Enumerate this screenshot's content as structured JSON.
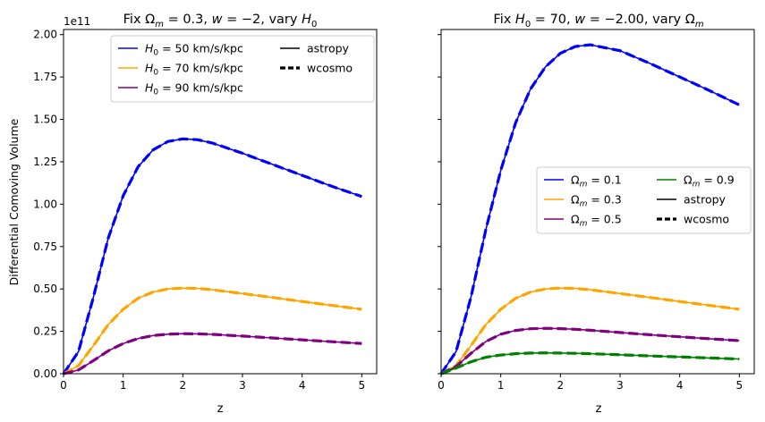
{
  "chart_data": [
    {
      "type": "line",
      "title": "Fix Ωm = 0.3, w = −2, vary H0",
      "title_parts": {
        "p1": "Fix Ω",
        "s1": "m",
        "p2": " = 0.3, ",
        "w": "w",
        "p3": " = −2, vary ",
        "h": "H",
        "s2": "0"
      },
      "xlabel": "z",
      "ylabel": "Differential Comoving Volume",
      "offset_label": "1e11",
      "xlim": [
        0,
        5.25
      ],
      "ylim": [
        0,
        2.03
      ],
      "y_scale": 100000000000.0,
      "xticks": [
        "0",
        "1",
        "2",
        "3",
        "4",
        "5"
      ],
      "yticks": [
        "0.00",
        "0.25",
        "0.50",
        "0.75",
        "1.00",
        "1.25",
        "1.50",
        "1.75",
        "2.00"
      ],
      "grid": false,
      "legend": {
        "placement": "top-right",
        "entries": [
          {
            "label": "H0 = 50 km/s/kpc",
            "math": "H",
            "sub": "0",
            "rest": " = 50 km/s/kpc",
            "color": "#0000ff",
            "style": "solid"
          },
          {
            "label": "H0 = 70 km/s/kpc",
            "math": "H",
            "sub": "0",
            "rest": " = 70 km/s/kpc",
            "color": "#ffa500",
            "style": "solid"
          },
          {
            "label": "H0 = 90 km/s/kpc",
            "math": "H",
            "sub": "0",
            "rest": " = 90 km/s/kpc",
            "color": "#800080",
            "style": "solid"
          },
          {
            "label": "astropy",
            "color": "#000000",
            "style": "solid"
          },
          {
            "label": "wcosmo",
            "color": "#000000",
            "style": "dashed"
          }
        ]
      },
      "x": [
        0,
        0.25,
        0.5,
        0.75,
        1,
        1.25,
        1.5,
        1.75,
        2,
        2.25,
        2.5,
        3,
        3.5,
        4,
        4.5,
        5
      ],
      "series": [
        {
          "name": "H0 = 50 km/s/kpc",
          "color": "#0000ff",
          "values": [
            0,
            0.13,
            0.45,
            0.8,
            1.05,
            1.22,
            1.32,
            1.37,
            1.385,
            1.38,
            1.36,
            1.3,
            1.235,
            1.17,
            1.105,
            1.045
          ]
        },
        {
          "name": "H0 = 70 km/s/kpc",
          "color": "#ffa500",
          "values": [
            0,
            0.048,
            0.165,
            0.29,
            0.38,
            0.445,
            0.482,
            0.5,
            0.505,
            0.503,
            0.495,
            0.473,
            0.45,
            0.426,
            0.403,
            0.38
          ]
        },
        {
          "name": "H0 = 90 km/s/kpc",
          "color": "#800080",
          "values": [
            0,
            0.022,
            0.077,
            0.135,
            0.178,
            0.207,
            0.225,
            0.233,
            0.236,
            0.235,
            0.232,
            0.222,
            0.211,
            0.2,
            0.189,
            0.178
          ]
        }
      ]
    },
    {
      "type": "line",
      "title": "Fix H0 = 70, w = −2.00, vary Ωm",
      "title_parts": {
        "p1": "Fix ",
        "h": "H",
        "s1": "0",
        "p2": " = 70, ",
        "w": "w",
        "p3": " = −2.00, vary Ω",
        "s2": "m"
      },
      "xlabel": "z",
      "ylabel": "",
      "xlim": [
        0,
        5.25
      ],
      "ylim": [
        0,
        2.03
      ],
      "y_scale": 100000000000.0,
      "xticks": [
        "0",
        "1",
        "2",
        "3",
        "4",
        "5"
      ],
      "grid": false,
      "legend": {
        "placement": "center-right",
        "entries": [
          {
            "label": "Ωm = 0.1",
            "math": "Ω",
            "sub": "m",
            "rest": " = 0.1",
            "color": "#0000ff",
            "style": "solid"
          },
          {
            "label": "Ωm = 0.3",
            "math": "Ω",
            "sub": "m",
            "rest": " = 0.3",
            "color": "#ffa500",
            "style": "solid"
          },
          {
            "label": "Ωm = 0.5",
            "math": "Ω",
            "sub": "m",
            "rest": " = 0.5",
            "color": "#800080",
            "style": "solid"
          },
          {
            "label": "Ωm = 0.9",
            "math": "Ω",
            "sub": "m",
            "rest": " = 0.9",
            "color": "#008000",
            "style": "solid"
          },
          {
            "label": "astropy",
            "color": "#000000",
            "style": "solid"
          },
          {
            "label": "wcosmo",
            "color": "#000000",
            "style": "dashed"
          }
        ]
      },
      "x": [
        0,
        0.25,
        0.5,
        0.75,
        1,
        1.25,
        1.5,
        1.75,
        2,
        2.25,
        2.5,
        3,
        3.5,
        4,
        4.5,
        5
      ],
      "series": [
        {
          "name": "Ωm = 0.1",
          "color": "#0000ff",
          "values": [
            0,
            0.13,
            0.45,
            0.85,
            1.2,
            1.48,
            1.68,
            1.81,
            1.89,
            1.93,
            1.94,
            1.905,
            1.83,
            1.75,
            1.67,
            1.585
          ]
        },
        {
          "name": "Ωm = 0.3",
          "color": "#ffa500",
          "values": [
            0,
            0.048,
            0.165,
            0.29,
            0.38,
            0.445,
            0.482,
            0.5,
            0.505,
            0.503,
            0.495,
            0.473,
            0.45,
            0.426,
            0.403,
            0.38
          ]
        },
        {
          "name": "Ωm = 0.5",
          "color": "#800080",
          "values": [
            0,
            0.042,
            0.12,
            0.19,
            0.233,
            0.255,
            0.265,
            0.268,
            0.266,
            0.262,
            0.256,
            0.243,
            0.23,
            0.218,
            0.206,
            0.195
          ]
        },
        {
          "name": "Ωm = 0.9",
          "color": "#008000",
          "values": [
            0,
            0.033,
            0.07,
            0.097,
            0.11,
            0.118,
            0.122,
            0.123,
            0.122,
            0.12,
            0.118,
            0.112,
            0.105,
            0.099,
            0.093,
            0.087
          ]
        }
      ]
    }
  ]
}
